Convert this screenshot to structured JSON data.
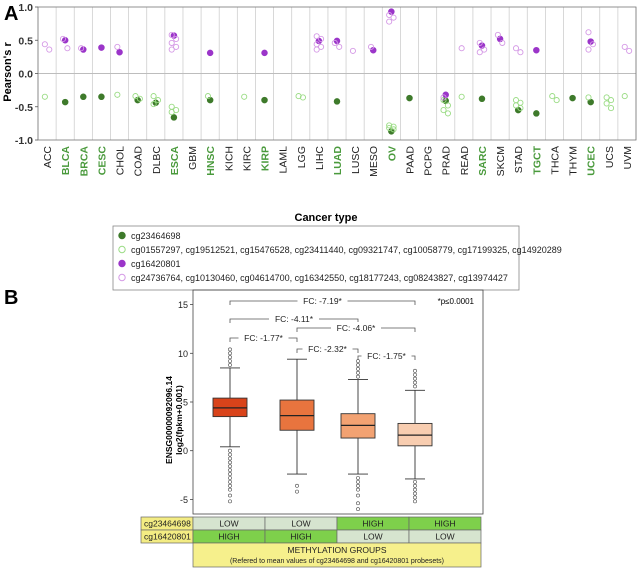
{
  "panel_a": {
    "label": "A",
    "ylabel": "Pearson's r",
    "xlabel": "Cancer type",
    "highlight_color": "#4a9a3c",
    "legend": [
      {
        "marker": "filled-green",
        "text": "cg23464698"
      },
      {
        "marker": "open-green",
        "text": "cg01557297, cg19512521, cg15476528, cg23411440, cg09321747, cg10058779, cg17199325, cg14920289"
      },
      {
        "marker": "filled-purple",
        "text": "cg16420801"
      },
      {
        "marker": "open-purple",
        "text": "cg24736764, cg10130460, cg04614700, cg16342550, cg18177243, cg08243827, cg13974427"
      }
    ]
  },
  "panel_b": {
    "label": "B",
    "ylabel_line1": "ENSG00000092096.14",
    "ylabel_line2": "log2(fpkm+0.001)",
    "significance_note": "*p≤0.0001",
    "comparisons": [
      {
        "from": 0,
        "to": 3,
        "label": "FC: -7.19*"
      },
      {
        "from": 0,
        "to": 2,
        "label": "FC: -4.11*"
      },
      {
        "from": 1,
        "to": 3,
        "label": "FC: -4.06*"
      },
      {
        "from": 0,
        "to": 1,
        "label": "FC: -1.77*"
      },
      {
        "from": 1,
        "to": 2,
        "label": "FC: -2.32*"
      },
      {
        "from": 2,
        "to": 3,
        "label": "FC: -1.75*"
      }
    ],
    "groups_table": {
      "rows": [
        {
          "probe": "cg23464698",
          "values": [
            "LOW",
            "LOW",
            "HIGH",
            "HIGH"
          ]
        },
        {
          "probe": "cg16420801",
          "values": [
            "HIGH",
            "HIGH",
            "LOW",
            "LOW"
          ]
        }
      ],
      "footer_title": "METHYLATION GROUPS",
      "footer_subtitle": "(Refered to mean values of cg23464698 and cg16420801 probesets)"
    },
    "colors": {
      "high": "#7ed04b",
      "low": "#d6e4cf",
      "table_probe": "#f3ec83",
      "footer": "#f6f08c"
    }
  },
  "chart_data": [
    {
      "type": "scatter",
      "title": "",
      "xlabel": "Cancer type",
      "ylabel": "Pearson's r",
      "ylim": [
        -1.0,
        1.0
      ],
      "yticks": [
        -1.0,
        -0.5,
        0.0,
        0.5,
        1.0
      ],
      "categories": [
        "ACC",
        "BLCA",
        "BRCA",
        "CESC",
        "CHOL",
        "COAD",
        "DLBC",
        "ESCA",
        "GBM",
        "HNSC",
        "KICH",
        "KIRC",
        "KIRP",
        "LAML",
        "LGG",
        "LIHC",
        "LUAD",
        "LUSC",
        "MESO",
        "OV",
        "PAAD",
        "PCPG",
        "PRAD",
        "READ",
        "SARC",
        "SKCM",
        "STAD",
        "TGCT",
        "THCA",
        "THYM",
        "UCEC",
        "UCS",
        "UVM"
      ],
      "highlighted_categories": [
        "BLCA",
        "BRCA",
        "CESC",
        "ESCA",
        "HNSC",
        "KIRP",
        "LUAD",
        "OV",
        "SARC",
        "TGCT",
        "UCEC"
      ],
      "series": [
        {
          "name": "cg23464698",
          "style": "filled-green",
          "points": [
            [
              "BLCA",
              -0.43
            ],
            [
              "BRCA",
              -0.35
            ],
            [
              "CESC",
              -0.35
            ],
            [
              "COAD",
              -0.4
            ],
            [
              "DLBC",
              -0.44
            ],
            [
              "ESCA",
              -0.66
            ],
            [
              "HNSC",
              -0.4
            ],
            [
              "KIRP",
              -0.4
            ],
            [
              "LUAD",
              -0.42
            ],
            [
              "OV",
              -0.87
            ],
            [
              "PAAD",
              -0.37
            ],
            [
              "PRAD",
              -0.41
            ],
            [
              "SARC",
              -0.38
            ],
            [
              "STAD",
              -0.55
            ],
            [
              "TGCT",
              -0.6
            ],
            [
              "THYM",
              -0.37
            ],
            [
              "UCEC",
              -0.43
            ]
          ]
        },
        {
          "name": "cg01557297, cg19512521, cg15476528, cg23411440, cg09321747, cg10058779, cg17199325, cg14920289",
          "style": "open-green",
          "points": [
            [
              "ACC",
              -0.35
            ],
            [
              "CHOL",
              -0.32
            ],
            [
              "COAD",
              -0.34
            ],
            [
              "COAD",
              -0.38
            ],
            [
              "DLBC",
              -0.34
            ],
            [
              "DLBC",
              -0.4
            ],
            [
              "DLBC",
              -0.46
            ],
            [
              "ESCA",
              -0.5
            ],
            [
              "ESCA",
              -0.55
            ],
            [
              "ESCA",
              -0.58
            ],
            [
              "HNSC",
              -0.34
            ],
            [
              "KIRC",
              -0.35
            ],
            [
              "LGG",
              -0.34
            ],
            [
              "LGG",
              -0.36
            ],
            [
              "OV",
              -0.78
            ],
            [
              "OV",
              -0.8
            ],
            [
              "OV",
              -0.82
            ],
            [
              "OV",
              -0.84
            ],
            [
              "PRAD",
              -0.4
            ],
            [
              "PRAD",
              -0.48
            ],
            [
              "PRAD",
              -0.55
            ],
            [
              "PRAD",
              -0.6
            ],
            [
              "READ",
              -0.35
            ],
            [
              "STAD",
              -0.4
            ],
            [
              "STAD",
              -0.44
            ],
            [
              "STAD",
              -0.48
            ],
            [
              "STAD",
              -0.52
            ],
            [
              "THCA",
              -0.34
            ],
            [
              "THCA",
              -0.4
            ],
            [
              "UCEC",
              -0.36
            ],
            [
              "UCS",
              -0.36
            ],
            [
              "UCS",
              -0.4
            ],
            [
              "UCS",
              -0.45
            ],
            [
              "UCS",
              -0.52
            ],
            [
              "UVM",
              -0.34
            ]
          ]
        },
        {
          "name": "cg16420801",
          "style": "filled-purple",
          "points": [
            [
              "BLCA",
              0.5
            ],
            [
              "BRCA",
              0.36
            ],
            [
              "CESC",
              0.39
            ],
            [
              "CHOL",
              0.32
            ],
            [
              "ESCA",
              0.57
            ],
            [
              "HNSC",
              0.31
            ],
            [
              "KIRP",
              0.31
            ],
            [
              "LIHC",
              0.49
            ],
            [
              "LUAD",
              0.49
            ],
            [
              "MESO",
              0.35
            ],
            [
              "OV",
              0.93
            ],
            [
              "PRAD",
              -0.32
            ],
            [
              "SARC",
              0.42
            ],
            [
              "SKCM",
              0.52
            ],
            [
              "TGCT",
              0.35
            ],
            [
              "UCEC",
              0.48
            ]
          ]
        },
        {
          "name": "cg24736764, cg10130460, cg04614700, cg16342550, cg18177243, cg08243827, cg13974427",
          "style": "open-purple",
          "points": [
            [
              "ACC",
              0.44
            ],
            [
              "ACC",
              0.36
            ],
            [
              "BLCA",
              0.52
            ],
            [
              "BLCA",
              0.38
            ],
            [
              "BRCA",
              0.38
            ],
            [
              "CHOL",
              0.4
            ],
            [
              "ESCA",
              0.58
            ],
            [
              "ESCA",
              0.52
            ],
            [
              "ESCA",
              0.46
            ],
            [
              "ESCA",
              0.4
            ],
            [
              "ESCA",
              0.36
            ],
            [
              "LIHC",
              0.56
            ],
            [
              "LIHC",
              0.52
            ],
            [
              "LIHC",
              0.44
            ],
            [
              "LIHC",
              0.4
            ],
            [
              "LIHC",
              0.36
            ],
            [
              "LUAD",
              0.46
            ],
            [
              "LUAD",
              0.4
            ],
            [
              "LUSC",
              0.34
            ],
            [
              "MESO",
              0.4
            ],
            [
              "OV",
              0.88
            ],
            [
              "OV",
              0.84
            ],
            [
              "OV",
              0.78
            ],
            [
              "PRAD",
              -0.36
            ],
            [
              "READ",
              0.38
            ],
            [
              "SARC",
              0.46
            ],
            [
              "SARC",
              0.36
            ],
            [
              "SARC",
              0.32
            ],
            [
              "SKCM",
              0.58
            ],
            [
              "SKCM",
              0.46
            ],
            [
              "STAD",
              0.38
            ],
            [
              "STAD",
              0.32
            ],
            [
              "UCEC",
              0.62
            ],
            [
              "UCEC",
              0.44
            ],
            [
              "UCEC",
              0.36
            ],
            [
              "UVM",
              0.4
            ],
            [
              "UVM",
              0.34
            ]
          ]
        }
      ]
    },
    {
      "type": "boxplot",
      "title": "",
      "xlabel": "",
      "ylabel": "ENSG00000092096.14 log2(fpkm+0.001)",
      "ylim": [
        -6.5,
        16.5
      ],
      "yticks": [
        -5,
        0,
        5,
        10,
        15
      ],
      "categories": [
        "cg23464698 LOW / cg16420801 HIGH",
        "cg23464698 LOW / cg16420801 HIGH",
        "cg23464698 HIGH / cg16420801 LOW",
        "cg23464698 HIGH / cg16420801 LOW"
      ],
      "boxes": [
        {
          "color": "#d9431a",
          "min": 0.4,
          "q1": 3.5,
          "median": 4.4,
          "q3": 5.4,
          "max": 8.5,
          "outliers_high": [
            8.8,
            9.2,
            9.6,
            10.0,
            10.4
          ],
          "outliers_low": [
            0.0,
            -0.4,
            -0.8,
            -1.2,
            -1.6,
            -2.0,
            -2.4,
            -2.8,
            -3.2,
            -3.6,
            -4.0,
            -4.6,
            -5.2
          ]
        },
        {
          "color": "#e8743e",
          "min": -2.4,
          "q1": 2.1,
          "median": 3.6,
          "q3": 5.2,
          "max": 9.4,
          "outliers_high": [],
          "outliers_low": [
            -3.6,
            -4.2
          ]
        },
        {
          "color": "#f2a272",
          "min": -2.4,
          "q1": 1.3,
          "median": 2.6,
          "q3": 3.8,
          "max": 7.3,
          "outliers_high": [
            7.6,
            8.0,
            8.4,
            8.8,
            9.2
          ],
          "outliers_low": [
            -2.8,
            -3.2,
            -3.6,
            -4.0,
            -4.6,
            -5.4,
            -6.0
          ]
        },
        {
          "color": "#f8cdb0",
          "min": -2.9,
          "q1": 0.5,
          "median": 1.6,
          "q3": 2.8,
          "max": 6.2,
          "outliers_high": [
            6.6,
            7.0,
            7.4,
            7.8,
            8.2
          ],
          "outliers_low": [
            -3.2,
            -3.6,
            -4.0,
            -4.4,
            -4.8,
            -5.2
          ]
        }
      ]
    }
  ]
}
